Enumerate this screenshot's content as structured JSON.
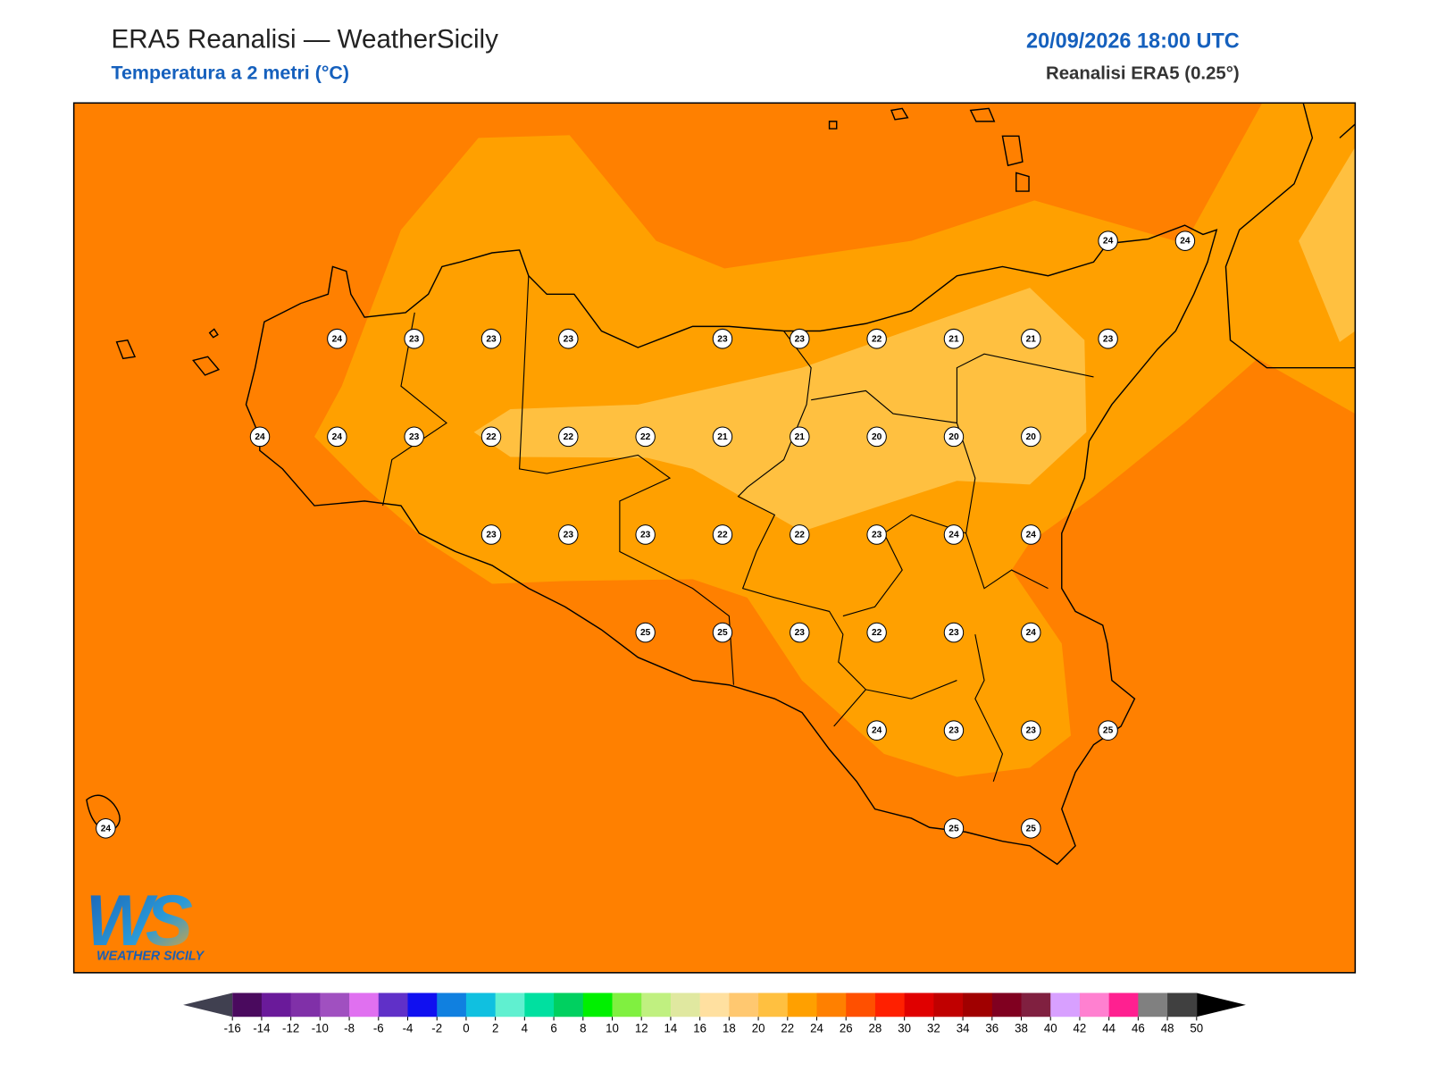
{
  "header": {
    "title": "ERA5 Reanalisi — WeatherSicily",
    "subtitle": "Temperatura a 2 metri (°C)",
    "datetime": "20/09/2026 18:00 UTC",
    "source": "Reanalisi ERA5 (0.25°)"
  },
  "map": {
    "rows": [
      [
        null,
        null,
        null,
        null,
        null,
        null,
        null,
        null,
        null,
        null,
        null,
        null,
        null,
        24,
        24
      ],
      [
        null,
        null,
        null,
        24,
        23,
        23,
        23,
        null,
        23,
        23,
        22,
        21,
        21,
        23,
        null
      ],
      [
        null,
        null,
        24,
        24,
        23,
        22,
        22,
        22,
        21,
        21,
        20,
        20,
        20,
        null,
        null
      ],
      [
        null,
        null,
        null,
        null,
        null,
        23,
        23,
        23,
        22,
        22,
        23,
        24,
        24,
        null,
        null
      ],
      [
        null,
        null,
        null,
        null,
        null,
        null,
        null,
        25,
        25,
        23,
        22,
        23,
        24,
        null,
        null
      ],
      [
        null,
        null,
        null,
        null,
        null,
        null,
        null,
        null,
        null,
        null,
        24,
        23,
        23,
        25,
        null
      ],
      [
        24,
        null,
        null,
        null,
        null,
        null,
        null,
        null,
        null,
        null,
        null,
        25,
        25,
        null,
        null
      ]
    ]
  },
  "logo": {
    "mark": "WS",
    "name": "WEATHER SICILY"
  },
  "colorbar": {
    "ticks": [
      -16,
      -14,
      -12,
      -10,
      -8,
      -6,
      -4,
      -2,
      0,
      2,
      4,
      6,
      8,
      10,
      12,
      14,
      16,
      18,
      20,
      22,
      24,
      26,
      28,
      30,
      32,
      34,
      36,
      38,
      40,
      42,
      44,
      46,
      48,
      50
    ],
    "colors": [
      "#4a0a5e",
      "#6a1a9a",
      "#8030a8",
      "#a050c0",
      "#e070f0",
      "#6030c8",
      "#1010f0",
      "#1080e0",
      "#10c0e0",
      "#60f0d0",
      "#00e0a0",
      "#00d060",
      "#00f000",
      "#80f040",
      "#c0f080",
      "#e0e8a0",
      "#ffe0a0",
      "#ffc870",
      "#ffc040",
      "#ffa000",
      "#ff8000",
      "#ff5000",
      "#ff2000",
      "#e00000",
      "#c00000",
      "#a00000",
      "#800020",
      "#802040",
      "#d8a0ff",
      "#ff80d0",
      "#ff2090",
      "#808080",
      "#404040"
    ],
    "under_color": "#404050",
    "over_color": "#000000"
  }
}
